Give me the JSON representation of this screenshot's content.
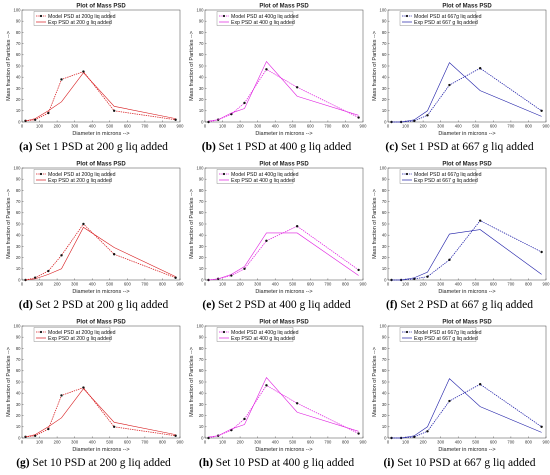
{
  "figure": {
    "colors": {
      "red": "#d7191c",
      "magenta": "#e01ee0",
      "blue": "#1f1fa8"
    },
    "panels": [
      {
        "caption_letter": "(a)",
        "caption_text": " Set 1 PSD at 200 g liq added",
        "color": "red"
      },
      {
        "caption_letter": "(b)",
        "caption_text": " Set 1 PSD at 400 g liq added",
        "color": "magenta"
      },
      {
        "caption_letter": "(c)",
        "caption_text": " Set 1 PSD at 667 g liq added",
        "color": "blue"
      },
      {
        "caption_letter": "(d)",
        "caption_text": " Set 2 PSD at 200 g liq added",
        "color": "red"
      },
      {
        "caption_letter": "(e)",
        "caption_text": " Set 2 PSD at 400 g liq added",
        "color": "magenta"
      },
      {
        "caption_letter": "(f)",
        "caption_text": " Set 2 PSD at 667 g liq added",
        "color": "blue"
      },
      {
        "caption_letter": "(g)",
        "caption_text": " Set 10 PSD at 200 g liq added",
        "color": "red"
      },
      {
        "caption_letter": "(h)",
        "caption_text": " Set 10 PSD at 400 g liq added",
        "color": "magenta"
      },
      {
        "caption_letter": "(i)",
        "caption_text": " Set 10 PSD at 667 g liq added",
        "color": "blue"
      }
    ]
  },
  "chart_data": [
    {
      "type": "line",
      "title": "Plot of Mass PSD",
      "xlabel": "Diameter in microns -->",
      "ylabel": "Mass fraction of Particles -->",
      "xlim": [
        0,
        900
      ],
      "ylim": [
        0,
        100
      ],
      "xticks": [
        0,
        100,
        200,
        300,
        400,
        500,
        600,
        700,
        800,
        900
      ],
      "yticks": [
        0,
        10,
        20,
        30,
        40,
        50,
        60,
        70,
        80,
        90,
        100
      ],
      "legend_position": "top-left",
      "series": [
        {
          "name": "Model PSD at 200g liq added",
          "style": "dotted-marker",
          "x": [
            20,
            75,
            150,
            225,
            350,
            525,
            875
          ],
          "y": [
            1,
            2,
            8,
            38,
            45,
            10,
            2
          ]
        },
        {
          "name": "Exp PSD at 200 g liq added",
          "style": "solid",
          "x": [
            20,
            75,
            150,
            225,
            350,
            525,
            875
          ],
          "y": [
            1,
            3,
            10,
            18,
            44,
            14,
            3
          ]
        }
      ]
    },
    {
      "type": "line",
      "title": "Plot of Mass PSD",
      "xlabel": "Diameter in microns -->",
      "ylabel": "Mass fraction of Particles -->",
      "xlim": [
        0,
        900
      ],
      "ylim": [
        0,
        100
      ],
      "xticks": [
        0,
        100,
        200,
        300,
        400,
        500,
        600,
        700,
        800,
        900
      ],
      "yticks": [
        0,
        10,
        20,
        30,
        40,
        50,
        60,
        70,
        80,
        90,
        100
      ],
      "legend_position": "top-left",
      "series": [
        {
          "name": "Model PSD at 400g liq added",
          "style": "dotted-marker",
          "x": [
            20,
            75,
            150,
            225,
            350,
            525,
            875
          ],
          "y": [
            0,
            2,
            7,
            17,
            47,
            31,
            4
          ]
        },
        {
          "name": "Exp PSD at 400 g liq added",
          "style": "solid",
          "x": [
            20,
            75,
            150,
            225,
            350,
            525,
            875
          ],
          "y": [
            1,
            2,
            8,
            12,
            54,
            23,
            6
          ]
        }
      ]
    },
    {
      "type": "line",
      "title": "Plot of Mass PSD",
      "xlabel": "Diameter in microns -->",
      "ylabel": "Mass fraction of Particles -->",
      "xlim": [
        0,
        900
      ],
      "ylim": [
        0,
        100
      ],
      "xticks": [
        0,
        100,
        200,
        300,
        400,
        500,
        600,
        700,
        800,
        900
      ],
      "yticks": [
        0,
        10,
        20,
        30,
        40,
        50,
        60,
        70,
        80,
        90,
        100
      ],
      "legend_position": "top-left",
      "series": [
        {
          "name": "Model PSD at 667g liq added",
          "style": "dotted-marker",
          "x": [
            20,
            75,
            150,
            225,
            350,
            525,
            875
          ],
          "y": [
            0,
            0,
            1,
            6,
            33,
            48,
            10
          ]
        },
        {
          "name": "Exp PSD at 667 g liq added",
          "style": "solid",
          "x": [
            20,
            75,
            150,
            225,
            350,
            525,
            875
          ],
          "y": [
            0,
            0,
            2,
            10,
            53,
            28,
            5
          ]
        }
      ]
    },
    {
      "type": "line",
      "title": "Plot of Mass PSD",
      "xlabel": "Diameter in microns -->",
      "ylabel": "Mass fraction of Particles -->",
      "xlim": [
        0,
        900
      ],
      "ylim": [
        0,
        100
      ],
      "xticks": [
        0,
        100,
        200,
        300,
        400,
        500,
        600,
        700,
        800,
        900
      ],
      "yticks": [
        0,
        10,
        20,
        30,
        40,
        50,
        60,
        70,
        80,
        90,
        100
      ],
      "legend_position": "top-left",
      "series": [
        {
          "name": "Model PSD at 200g liq added",
          "style": "dotted-marker",
          "x": [
            20,
            75,
            150,
            225,
            350,
            525,
            875
          ],
          "y": [
            0,
            2,
            8,
            22,
            50,
            23,
            2
          ]
        },
        {
          "name": "Exp PSD at 200 g liq added",
          "style": "solid",
          "x": [
            20,
            75,
            150,
            225,
            350,
            525,
            875
          ],
          "y": [
            0,
            1,
            5,
            10,
            47,
            29,
            3
          ]
        }
      ]
    },
    {
      "type": "line",
      "title": "Plot of Mass PSD",
      "xlabel": "Diameter in microns -->",
      "ylabel": "Mass fraction of Particles -->",
      "xlim": [
        0,
        900
      ],
      "ylim": [
        0,
        100
      ],
      "xticks": [
        0,
        100,
        200,
        300,
        400,
        500,
        600,
        700,
        800,
        900
      ],
      "yticks": [
        0,
        10,
        20,
        30,
        40,
        50,
        60,
        70,
        80,
        90,
        100
      ],
      "legend_position": "top-left",
      "series": [
        {
          "name": "Model PSD at 400g liq added",
          "style": "dotted-marker",
          "x": [
            20,
            75,
            150,
            225,
            350,
            525,
            875
          ],
          "y": [
            0,
            1,
            4,
            10,
            35,
            48,
            9
          ]
        },
        {
          "name": "Exp PSD at 400 g liq added",
          "style": "solid",
          "x": [
            20,
            75,
            150,
            225,
            350,
            525,
            875
          ],
          "y": [
            0,
            1,
            5,
            12,
            42,
            42,
            4
          ]
        }
      ]
    },
    {
      "type": "line",
      "title": "Plot of Mass PSD",
      "xlabel": "Diameter in microns -->",
      "ylabel": "Mass fraction of Particles -->",
      "xlim": [
        0,
        900
      ],
      "ylim": [
        0,
        100
      ],
      "xticks": [
        0,
        100,
        200,
        300,
        400,
        500,
        600,
        700,
        800,
        900
      ],
      "yticks": [
        0,
        10,
        20,
        30,
        40,
        50,
        60,
        70,
        80,
        90,
        100
      ],
      "legend_position": "top-left",
      "series": [
        {
          "name": "Model PSD at 667g liq added",
          "style": "dotted-marker",
          "x": [
            20,
            75,
            150,
            225,
            350,
            525,
            875
          ],
          "y": [
            0,
            0,
            1,
            3,
            18,
            53,
            25
          ]
        },
        {
          "name": "Exp PSD at 667 g liq added",
          "style": "solid",
          "x": [
            20,
            75,
            150,
            225,
            350,
            525,
            875
          ],
          "y": [
            0,
            0,
            2,
            7,
            41,
            45,
            5
          ]
        }
      ]
    },
    {
      "type": "line",
      "title": "Plot of Mass PSD",
      "xlabel": "Diameter in microns -->",
      "ylabel": "Mass fraction of Particles -->",
      "xlim": [
        0,
        900
      ],
      "ylim": [
        0,
        100
      ],
      "xticks": [
        0,
        100,
        200,
        300,
        400,
        500,
        600,
        700,
        800,
        900
      ],
      "yticks": [
        0,
        10,
        20,
        30,
        40,
        50,
        60,
        70,
        80,
        90,
        100
      ],
      "legend_position": "top-left",
      "series": [
        {
          "name": "Model PSD at 200g liq added",
          "style": "dotted-marker",
          "x": [
            20,
            75,
            150,
            225,
            350,
            525,
            875
          ],
          "y": [
            1,
            2,
            8,
            38,
            45,
            10,
            2
          ]
        },
        {
          "name": "Exp PSD at 200 g liq added",
          "style": "solid",
          "x": [
            20,
            75,
            150,
            225,
            350,
            525,
            875
          ],
          "y": [
            1,
            3,
            10,
            18,
            44,
            14,
            3
          ]
        }
      ]
    },
    {
      "type": "line",
      "title": "Plot of Mass PSD",
      "xlabel": "Diameter in microns -->",
      "ylabel": "Mass fraction of Particles -->",
      "xlim": [
        0,
        900
      ],
      "ylim": [
        0,
        100
      ],
      "xticks": [
        0,
        100,
        200,
        300,
        400,
        500,
        600,
        700,
        800,
        900
      ],
      "yticks": [
        0,
        10,
        20,
        30,
        40,
        50,
        60,
        70,
        80,
        90,
        100
      ],
      "legend_position": "top-left",
      "series": [
        {
          "name": "Model PSD at 400g liq added",
          "style": "dotted-marker",
          "x": [
            20,
            75,
            150,
            225,
            350,
            525,
            875
          ],
          "y": [
            0,
            2,
            7,
            17,
            47,
            31,
            4
          ]
        },
        {
          "name": "Exp PSD at 400 g liq added",
          "style": "solid",
          "x": [
            20,
            75,
            150,
            225,
            350,
            525,
            875
          ],
          "y": [
            1,
            2,
            8,
            12,
            54,
            23,
            6
          ]
        }
      ]
    },
    {
      "type": "line",
      "title": "Plot of Mass PSD",
      "xlabel": "Diameter in microns -->",
      "ylabel": "Mass fraction of Particles -->",
      "xlim": [
        0,
        900
      ],
      "ylim": [
        0,
        100
      ],
      "xticks": [
        0,
        100,
        200,
        300,
        400,
        500,
        600,
        700,
        800,
        900
      ],
      "yticks": [
        0,
        10,
        20,
        30,
        40,
        50,
        60,
        70,
        80,
        90,
        100
      ],
      "legend_position": "top-left",
      "series": [
        {
          "name": "Model PSD at 667g liq added",
          "style": "dotted-marker",
          "x": [
            20,
            75,
            150,
            225,
            350,
            525,
            875
          ],
          "y": [
            0,
            0,
            1,
            6,
            33,
            48,
            10
          ]
        },
        {
          "name": "Exp PSD at 667 g liq added",
          "style": "solid",
          "x": [
            20,
            75,
            150,
            225,
            350,
            525,
            875
          ],
          "y": [
            0,
            0,
            2,
            10,
            53,
            28,
            5
          ]
        }
      ]
    }
  ]
}
